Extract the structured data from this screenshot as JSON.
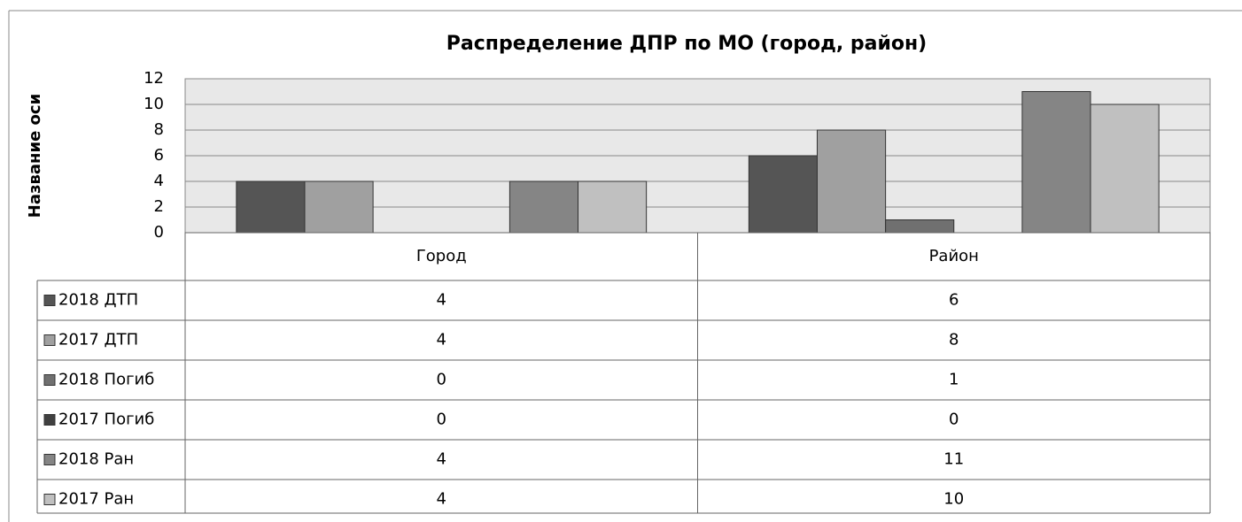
{
  "chart_data": {
    "type": "bar",
    "title": "Распределение ДПР по МО (город, район)",
    "y_axis_label": "Название оси",
    "categories": [
      "Город",
      "Район"
    ],
    "series": [
      {
        "name": "2018 ДТП",
        "color": "#555555",
        "values": [
          4,
          6
        ]
      },
      {
        "name": "2017 ДТП",
        "color": "#a0a0a0",
        "values": [
          4,
          8
        ]
      },
      {
        "name": "2018 Погиб",
        "color": "#707070",
        "values": [
          0,
          1
        ]
      },
      {
        "name": "2017 Погиб",
        "color": "#404040",
        "values": [
          0,
          0
        ]
      },
      {
        "name": "2018 Ран",
        "color": "#858585",
        "values": [
          4,
          11
        ]
      },
      {
        "name": "2017 Ран",
        "color": "#c0c0c0",
        "values": [
          4,
          10
        ]
      }
    ],
    "ylim": [
      0,
      12
    ],
    "yticks": [
      0,
      2,
      4,
      6,
      8,
      10,
      12
    ],
    "grid": true,
    "data_table": true
  }
}
